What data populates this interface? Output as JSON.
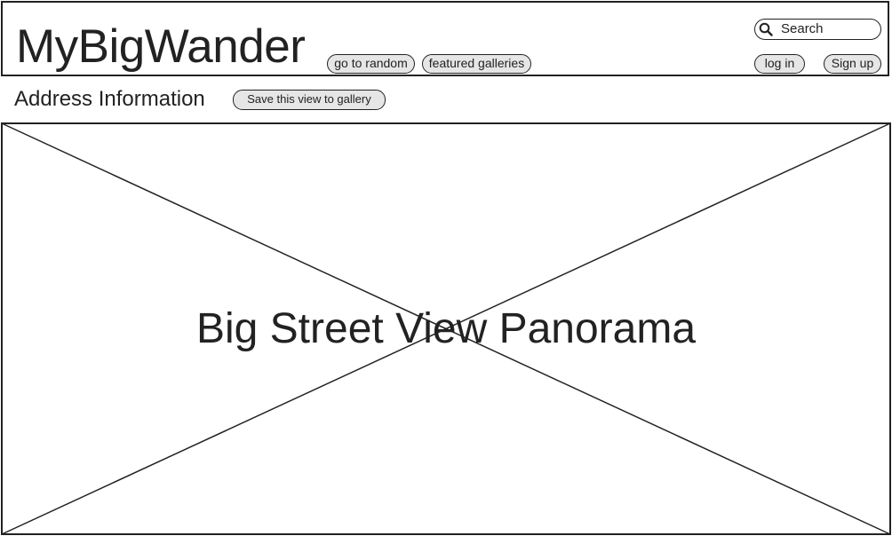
{
  "header": {
    "logo": "MyBigWander",
    "nav": {
      "random_label": "go to random",
      "featured_label": "featured galleries"
    },
    "search": {
      "placeholder": "Search"
    },
    "auth": {
      "login_label": "log in",
      "signup_label": "Sign up"
    }
  },
  "page": {
    "address_title": "Address Information",
    "save_label": "Save this view to gallery"
  },
  "panorama": {
    "label": "Big Street View Panorama"
  },
  "colors": {
    "line": "#222222",
    "button_fill": "#e6e6e6",
    "background": "#ffffff"
  },
  "icons": {
    "search": "search-icon"
  }
}
